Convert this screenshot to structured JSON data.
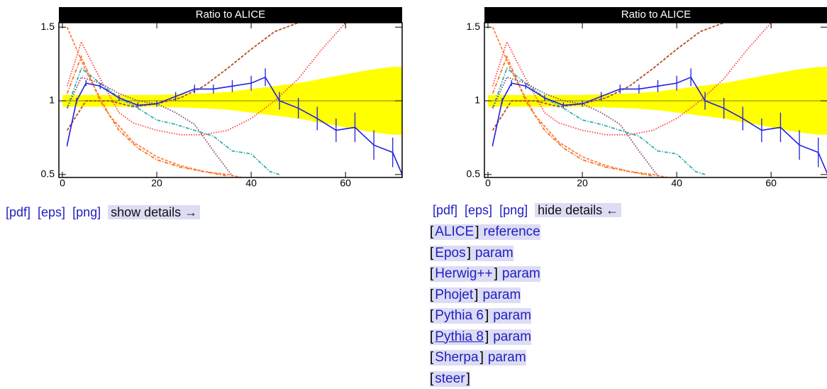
{
  "chart_data": {
    "type": "line",
    "title": "Ratio to ALICE",
    "xlim": [
      -0.75,
      72
    ],
    "ylim": [
      0.48,
      1.53
    ],
    "xticks": [
      0,
      20,
      40,
      60
    ],
    "yticks": [
      0.5,
      1,
      1.5
    ],
    "reference_line": 1,
    "reference_color": "#808000",
    "band": {
      "color": "#ffff00",
      "x": [
        0,
        10,
        20,
        30,
        35,
        40,
        45,
        50,
        55,
        60,
        65,
        70,
        72
      ],
      "halfwidth": [
        0.04,
        0.04,
        0.04,
        0.05,
        0.06,
        0.08,
        0.1,
        0.12,
        0.15,
        0.18,
        0.21,
        0.23,
        0.23
      ]
    },
    "series": [
      {
        "color": "#ff8040",
        "dash": "dashed",
        "x": [
          1,
          5,
          10,
          15,
          20,
          25,
          30,
          35,
          38
        ],
        "values": [
          1.5,
          1.2,
          0.9,
          0.72,
          0.62,
          0.56,
          0.52,
          0.5,
          0.48
        ]
      },
      {
        "color": "#ff7020",
        "dash": "dashdot",
        "x": [
          1,
          4,
          8,
          12,
          16,
          20,
          25,
          30,
          35
        ],
        "values": [
          1.05,
          1.3,
          1.0,
          0.8,
          0.68,
          0.6,
          0.55,
          0.52,
          0.49
        ]
      },
      {
        "color": "#ff4040",
        "dash": "dotted",
        "x": [
          1,
          4,
          8,
          12,
          15,
          20,
          25,
          30,
          35,
          40,
          45,
          50,
          55,
          60
        ],
        "values": [
          1.1,
          1.4,
          1.15,
          0.92,
          0.85,
          0.8,
          0.77,
          0.77,
          0.8,
          0.88,
          1.0,
          1.15,
          1.35,
          1.53
        ]
      },
      {
        "color": "#b05020",
        "dash": "dashed",
        "x": [
          1,
          5,
          10,
          15,
          20,
          25,
          30,
          35,
          40,
          45,
          50
        ],
        "values": [
          0.8,
          1.0,
          1.0,
          0.96,
          0.98,
          1.02,
          1.1,
          1.22,
          1.35,
          1.47,
          1.53
        ]
      },
      {
        "color": "#30b0b0",
        "dash": "dashdot",
        "x": [
          1,
          4,
          8,
          12,
          16,
          20,
          24,
          28,
          32,
          36,
          40,
          44,
          46
        ],
        "values": [
          0.95,
          1.22,
          1.12,
          1.02,
          0.95,
          0.87,
          0.84,
          0.8,
          0.76,
          0.66,
          0.64,
          0.52,
          0.5
        ]
      },
      {
        "color": "#804060",
        "dash": "dotted",
        "x": [
          1,
          4,
          8,
          12,
          16,
          20,
          24,
          28,
          32,
          36
        ],
        "values": [
          0.95,
          1.16,
          1.12,
          1.05,
          1.0,
          0.98,
          0.92,
          0.84,
          0.66,
          0.49
        ]
      },
      {
        "color": "#2020e0",
        "dash": "solid",
        "errors": true,
        "x": [
          1,
          3,
          5,
          8,
          12,
          16,
          20,
          24,
          28,
          32,
          36,
          40,
          43,
          46,
          50,
          54,
          58,
          62,
          66,
          70,
          72
        ],
        "values": [
          0.7,
          1.0,
          1.12,
          1.1,
          1.02,
          0.97,
          0.98,
          1.03,
          1.08,
          1.08,
          1.1,
          1.12,
          1.16,
          1.0,
          0.95,
          0.88,
          0.8,
          0.82,
          0.7,
          0.65,
          0.5
        ],
        "error": [
          0.01,
          0.02,
          0.02,
          0.02,
          0.02,
          0.02,
          0.02,
          0.03,
          0.03,
          0.03,
          0.04,
          0.05,
          0.06,
          0.06,
          0.07,
          0.08,
          0.08,
          0.1,
          0.1,
          0.1,
          0.1
        ]
      }
    ]
  },
  "left": {
    "links": [
      "[pdf]",
      "[eps]",
      "[png]"
    ],
    "toggle": "show details →"
  },
  "right": {
    "links": [
      "[pdf]",
      "[eps]",
      "[png]"
    ],
    "toggle": "hide details ←",
    "bracket_open": "[",
    "bracket_close": "]",
    "details": [
      {
        "name": "ALICE",
        "link": "reference"
      },
      {
        "name": "Epos",
        "link": "param"
      },
      {
        "name": "Herwig++",
        "link": "param"
      },
      {
        "name": "Phojet",
        "link": "param"
      },
      {
        "name": "Pythia 6",
        "link": "param"
      },
      {
        "name": "Pythia 8",
        "link": "param"
      },
      {
        "name": "Sherpa",
        "link": "param"
      },
      {
        "name": "steer"
      }
    ]
  }
}
